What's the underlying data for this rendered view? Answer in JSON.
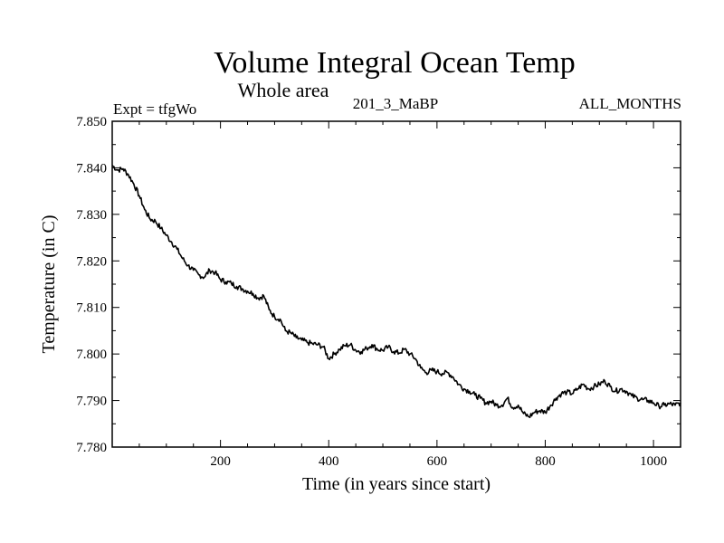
{
  "chart_data": {
    "type": "line",
    "title": "Volume Integral Ocean Temp",
    "subtitle": "Whole area",
    "annotations": {
      "left": "Expt = tfgWo",
      "center": "201_3_MaBP",
      "right": "ALL_MONTHS"
    },
    "xlabel": "Time (in years since start)",
    "ylabel": "Temperature (in C)",
    "xlim": [
      0,
      1050
    ],
    "ylim": [
      7.78,
      7.85
    ],
    "xticks": [
      200,
      400,
      600,
      800,
      1000
    ],
    "xtick_labels": [
      "200",
      "400",
      "600",
      "800",
      "1000"
    ],
    "yticks": [
      7.78,
      7.79,
      7.8,
      7.81,
      7.82,
      7.83,
      7.84,
      7.85
    ],
    "ytick_labels": [
      "7.780",
      "7.790",
      "7.800",
      "7.810",
      "7.820",
      "7.830",
      "7.840",
      "7.850"
    ],
    "grid": false,
    "series": [
      {
        "name": "Volume Integral Ocean Temp",
        "x": [
          0,
          10,
          20,
          30,
          40,
          50,
          60,
          70,
          80,
          90,
          100,
          110,
          120,
          130,
          140,
          150,
          160,
          170,
          180,
          190,
          200,
          210,
          220,
          230,
          240,
          250,
          260,
          270,
          280,
          290,
          300,
          310,
          320,
          330,
          340,
          350,
          360,
          370,
          380,
          390,
          400,
          410,
          420,
          430,
          440,
          450,
          460,
          470,
          480,
          490,
          500,
          510,
          520,
          530,
          540,
          550,
          560,
          570,
          580,
          590,
          600,
          610,
          620,
          630,
          640,
          650,
          660,
          670,
          680,
          690,
          700,
          710,
          720,
          730,
          740,
          750,
          760,
          770,
          780,
          790,
          800,
          810,
          820,
          830,
          840,
          850,
          860,
          870,
          880,
          890,
          900,
          910,
          920,
          930,
          940,
          950,
          960,
          970,
          980,
          990,
          1000,
          1010,
          1020,
          1030,
          1040,
          1050
        ],
        "values": [
          7.8405,
          7.8395,
          7.8398,
          7.8385,
          7.8365,
          7.834,
          7.831,
          7.829,
          7.8285,
          7.827,
          7.8255,
          7.824,
          7.8225,
          7.8205,
          7.819,
          7.818,
          7.817,
          7.8165,
          7.818,
          7.8175,
          7.816,
          7.8155,
          7.8152,
          7.8145,
          7.814,
          7.8135,
          7.813,
          7.812,
          7.8125,
          7.8095,
          7.808,
          7.8075,
          7.805,
          7.8045,
          7.8035,
          7.803,
          7.8025,
          7.8022,
          7.802,
          7.8015,
          7.799,
          7.8,
          7.801,
          7.8018,
          7.802,
          7.8008,
          7.8005,
          7.8012,
          7.802,
          7.801,
          7.8008,
          7.8015,
          7.8005,
          7.8002,
          7.801,
          7.8,
          7.799,
          7.797,
          7.796,
          7.7965,
          7.7962,
          7.7958,
          7.796,
          7.795,
          7.7935,
          7.7925,
          7.792,
          7.7912,
          7.7905,
          7.7895,
          7.7898,
          7.789,
          7.789,
          7.7905,
          7.7885,
          7.789,
          7.7872,
          7.7865,
          7.7875,
          7.7878,
          7.7875,
          7.789,
          7.7905,
          7.7915,
          7.7918,
          7.7915,
          7.7925,
          7.7935,
          7.7925,
          7.793,
          7.7935,
          7.7942,
          7.793,
          7.792,
          7.7925,
          7.792,
          7.791,
          7.7905,
          7.7902,
          7.79,
          7.7895,
          7.7888,
          7.789,
          7.7893,
          7.789,
          7.7895
        ]
      }
    ]
  }
}
